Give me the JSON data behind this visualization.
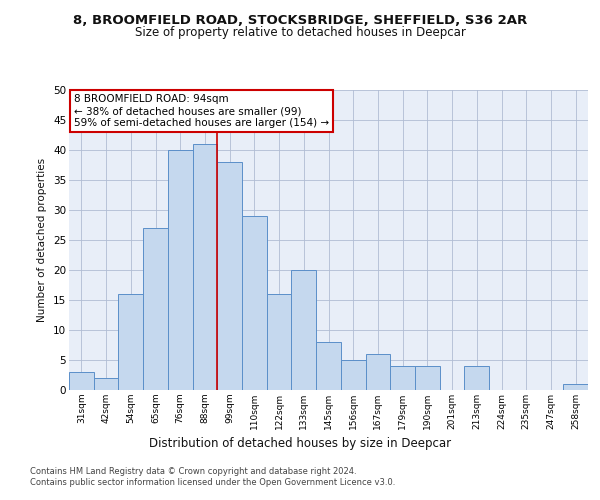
{
  "title1": "8, BROOMFIELD ROAD, STOCKSBRIDGE, SHEFFIELD, S36 2AR",
  "title2": "Size of property relative to detached houses in Deepcar",
  "xlabel": "Distribution of detached houses by size in Deepcar",
  "ylabel": "Number of detached properties",
  "bar_labels": [
    "31sqm",
    "42sqm",
    "54sqm",
    "65sqm",
    "76sqm",
    "88sqm",
    "99sqm",
    "110sqm",
    "122sqm",
    "133sqm",
    "145sqm",
    "156sqm",
    "167sqm",
    "179sqm",
    "190sqm",
    "201sqm",
    "213sqm",
    "224sqm",
    "235sqm",
    "247sqm",
    "258sqm"
  ],
  "bar_values": [
    3,
    2,
    16,
    27,
    40,
    41,
    38,
    29,
    16,
    20,
    8,
    5,
    6,
    4,
    4,
    0,
    4,
    0,
    0,
    0,
    1
  ],
  "bar_color": "#c5d8ee",
  "bar_edgecolor": "#5b8fc9",
  "vline_x": 5.5,
  "vline_color": "#cc0000",
  "annotation_text": "8 BROOMFIELD ROAD: 94sqm\n← 38% of detached houses are smaller (99)\n59% of semi-detached houses are larger (154) →",
  "annotation_box_facecolor": "#ffffff",
  "annotation_box_edgecolor": "#cc0000",
  "ylim": [
    0,
    50
  ],
  "yticks": [
    0,
    5,
    10,
    15,
    20,
    25,
    30,
    35,
    40,
    45,
    50
  ],
  "footer1": "Contains HM Land Registry data © Crown copyright and database right 2024.",
  "footer2": "Contains public sector information licensed under the Open Government Licence v3.0.",
  "plot_bg_color": "#e8eef8"
}
